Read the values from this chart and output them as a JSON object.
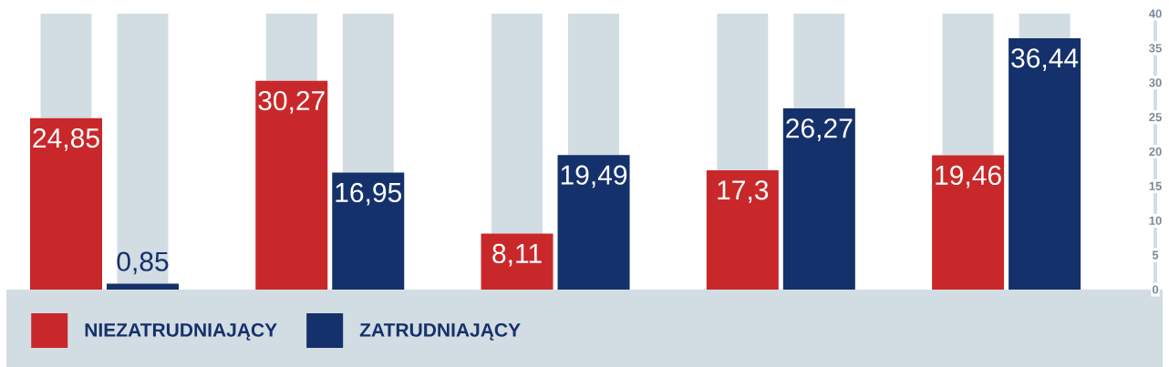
{
  "chart_data": {
    "type": "bar",
    "categories": [
      null,
      null,
      null,
      null,
      null
    ],
    "series": [
      {
        "name": "NIEZATRUDNIAJĄCY",
        "color": "#c9282a",
        "values": [
          24.85,
          30.27,
          8.11,
          17.3,
          19.46
        ],
        "value_labels": [
          "24,85",
          "30,27",
          "8,11",
          "17,3",
          "19,46"
        ]
      },
      {
        "name": "ZATRUDNIAJĄCY",
        "color": "#15316b",
        "values": [
          0.85,
          16.95,
          19.49,
          26.27,
          36.44
        ],
        "value_labels": [
          "0,85",
          "16,95",
          "19,49",
          "26,27",
          "36,44"
        ]
      }
    ],
    "ylim": [
      0,
      40
    ],
    "yticks": [
      0,
      5,
      10,
      15,
      20,
      25,
      30,
      35,
      40
    ],
    "legend": "bottom"
  }
}
